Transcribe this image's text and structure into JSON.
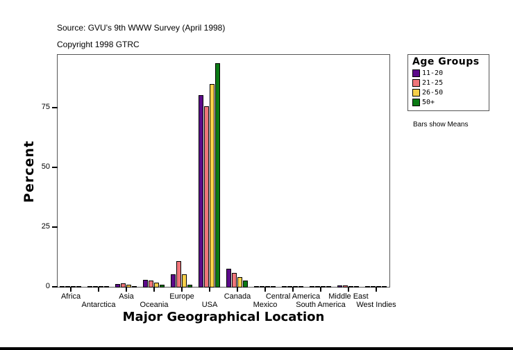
{
  "header": {
    "source": "Source: GVU's 9th WWW Survey (April 1998)",
    "copyright": "Copyright 1998 GTRC"
  },
  "legend": {
    "title": "Age Groups",
    "items": [
      {
        "label": "11-20",
        "color": "#5c0a8a"
      },
      {
        "label": "21-25",
        "color": "#f0757a"
      },
      {
        "label": "26-50",
        "color": "#f7d04a"
      },
      {
        "label": "50+",
        "color": "#0b7a14"
      }
    ]
  },
  "note": "Bars show Means",
  "chart_data": {
    "type": "bar",
    "title": "",
    "xlabel": "Major Geographical Location",
    "ylabel": "Percent",
    "ylim": [
      0,
      97.4
    ],
    "yticks": [
      0,
      25,
      50,
      75
    ],
    "grid": false,
    "legend_position": "right",
    "categories": [
      "Africa",
      "Antarctica",
      "Asia",
      "Oceania",
      "Europe",
      "USA",
      "Canada",
      "Mexico",
      "Central America",
      "South America",
      "Middle East",
      "West Indies"
    ],
    "series": [
      {
        "name": "11-20",
        "values": [
          0.2,
          0.1,
          1.5,
          3.2,
          5.5,
          80.5,
          7.8,
          0.5,
          0.1,
          0.2,
          0.8,
          0.1
        ]
      },
      {
        "name": "21-25",
        "values": [
          0.4,
          0.1,
          1.7,
          2.9,
          11.0,
          75.9,
          6.1,
          0.1,
          0.1,
          0.5,
          0.8,
          0.1
        ]
      },
      {
        "name": "26-50",
        "values": [
          0.4,
          0.1,
          1.2,
          2.0,
          5.5,
          85.2,
          4.4,
          0.1,
          0.1,
          0.5,
          0.4,
          0.1
        ]
      },
      {
        "name": "50+",
        "values": [
          0.2,
          0.1,
          0.6,
          1.2,
          1.2,
          93.9,
          2.9,
          0.1,
          0.1,
          0.2,
          0.4,
          0.1
        ]
      }
    ]
  }
}
